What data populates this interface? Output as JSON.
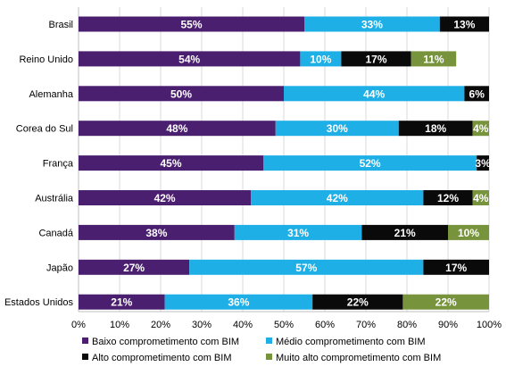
{
  "chart_data": {
    "type": "bar",
    "orientation": "horizontal",
    "stacked": true,
    "categories": [
      "Brasil",
      "Reino Unido",
      "Alemanha",
      "Corea do Sul",
      "França",
      "Austrália",
      "Canadá",
      "Japão",
      "Estados Unidos"
    ],
    "series": [
      {
        "name": "Baixo comprometimento com BIM",
        "color": "#4b1f6f",
        "values": [
          55,
          54,
          50,
          48,
          45,
          42,
          38,
          27,
          21
        ],
        "labels": [
          "55%",
          "54%",
          "50%",
          "48%",
          "45%",
          "42%",
          "38%",
          "27%",
          "21%"
        ]
      },
      {
        "name": "Médio comprometimento com BIM",
        "color": "#1eafe6",
        "values": [
          33,
          10,
          44,
          30,
          52,
          42,
          31,
          57,
          36
        ],
        "labels": [
          "33%",
          "10%",
          "44%",
          "30%",
          "52%",
          "42%",
          "31%",
          "57%",
          "36%"
        ]
      },
      {
        "name": "Alto comprometimento com BIM",
        "color": "#0a0a0a",
        "values": [
          13,
          17,
          6,
          18,
          3,
          12,
          21,
          17,
          22
        ],
        "labels": [
          "13%",
          "17%",
          "6%",
          "18%",
          "3%",
          "12%",
          "21%",
          "17%",
          "22%"
        ]
      },
      {
        "name": "Muito alto comprometimento com BIM",
        "color": "#77933c",
        "values": [
          0,
          11,
          0,
          4,
          0,
          4,
          10,
          0,
          22
        ],
        "labels": [
          "",
          "11%",
          "",
          "4%",
          "",
          "4%",
          "10%",
          "",
          "22%"
        ]
      }
    ],
    "xlim": [
      0,
      100
    ],
    "xticks": [
      "0%",
      "10%",
      "20%",
      "30%",
      "40%",
      "50%",
      "60%",
      "70%",
      "80%",
      "90%",
      "100%"
    ],
    "grid": true,
    "legend_position": "bottom"
  }
}
